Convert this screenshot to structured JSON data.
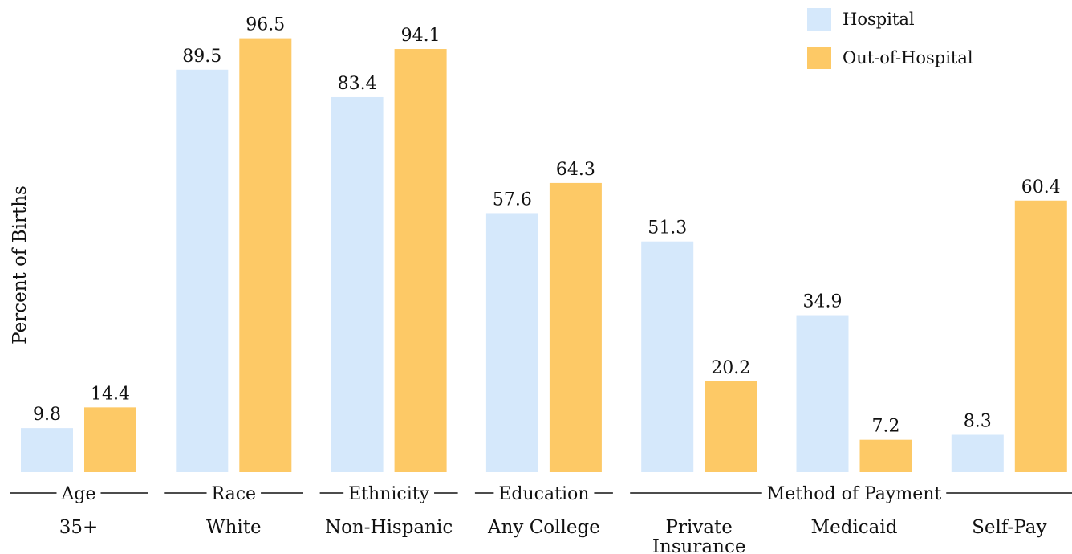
{
  "chart_data": {
    "type": "bar",
    "ylabel": "Percent of Births",
    "ylim": [
      0,
      100
    ],
    "grid": false,
    "legend_position": "top-right",
    "categories": [
      "35+",
      "White",
      "Non-Hispanic",
      "Any College",
      "Private Insurance",
      "Medicaid",
      "Self-Pay"
    ],
    "category_lines": [
      [
        "35+"
      ],
      [
        "White"
      ],
      [
        "Non-Hispanic"
      ],
      [
        "Any College"
      ],
      [
        "Private",
        "Insurance"
      ],
      [
        "Medicaid"
      ],
      [
        "Self-Pay"
      ]
    ],
    "groups": [
      {
        "label": "Age",
        "categories": [
          "35+"
        ]
      },
      {
        "label": "Race",
        "categories": [
          "White"
        ]
      },
      {
        "label": "Ethnicity",
        "categories": [
          "Non-Hispanic"
        ]
      },
      {
        "label": "Education",
        "categories": [
          "Any College"
        ]
      },
      {
        "label": "Method of Payment",
        "categories": [
          "Private Insurance",
          "Medicaid",
          "Self-Pay"
        ]
      }
    ],
    "series": [
      {
        "name": "Hospital",
        "color": "#d5e8fb",
        "values": [
          9.8,
          89.5,
          83.4,
          57.6,
          51.3,
          34.9,
          8.3
        ]
      },
      {
        "name": "Out-of-Hospital",
        "color": "#fdc966",
        "values": [
          14.4,
          96.5,
          94.1,
          64.3,
          20.2,
          7.2,
          60.4
        ]
      }
    ]
  }
}
